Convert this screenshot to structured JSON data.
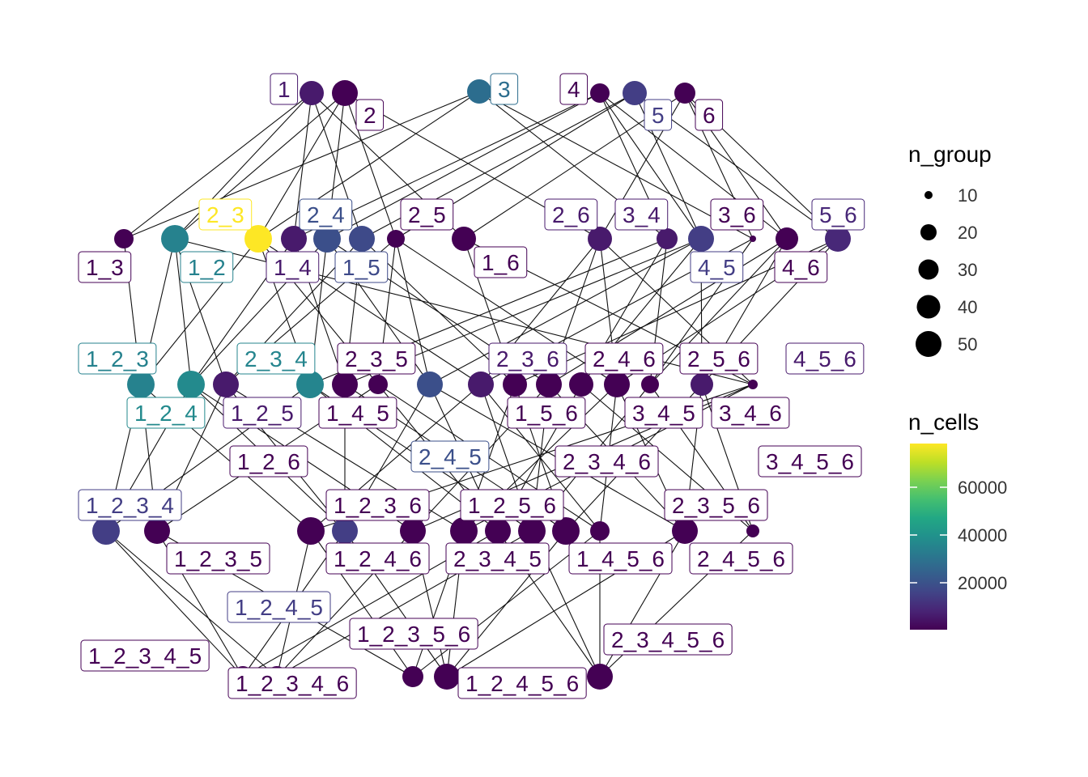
{
  "legend": {
    "size_title": "n_group",
    "size_entries": [
      {
        "label": "10",
        "value": 10
      },
      {
        "label": "20",
        "value": 20
      },
      {
        "label": "30",
        "value": 30
      },
      {
        "label": "40",
        "value": 40
      },
      {
        "label": "50",
        "value": 50
      }
    ],
    "color_title": "n_cells",
    "color_ticks": [
      {
        "label": "60000",
        "value": 60000
      },
      {
        "label": "40000",
        "value": 40000
      },
      {
        "label": "20000",
        "value": 20000
      }
    ],
    "color_scale": "viridis"
  },
  "nodes": [
    {
      "id": "1",
      "label": "1",
      "color": "#481a6c"
    },
    {
      "id": "2",
      "label": "2",
      "color": "#440154"
    },
    {
      "id": "3",
      "label": "3",
      "color": "#2c6d8e"
    },
    {
      "id": "4",
      "label": "4",
      "color": "#440154"
    },
    {
      "id": "5",
      "label": "5",
      "color": "#433e85"
    },
    {
      "id": "6",
      "label": "6",
      "color": "#440154"
    },
    {
      "id": "1_3",
      "label": "1_3",
      "color": "#440154"
    },
    {
      "id": "1_2",
      "label": "1_2",
      "color": "#26828e"
    },
    {
      "id": "2_3",
      "label": "2_3",
      "color": "#fde725"
    },
    {
      "id": "1_4",
      "label": "1_4",
      "color": "#481a6c"
    },
    {
      "id": "2_4",
      "label": "2_4",
      "color": "#3b4f8a"
    },
    {
      "id": "1_5",
      "label": "1_5",
      "color": "#3e4a89"
    },
    {
      "id": "2_5",
      "label": "2_5",
      "color": "#440154"
    },
    {
      "id": "1_6",
      "label": "1_6",
      "color": "#440154"
    },
    {
      "id": "2_6",
      "label": "2_6",
      "color": "#481a6c"
    },
    {
      "id": "3_4",
      "label": "3_4",
      "color": "#481a6c"
    },
    {
      "id": "4_5",
      "label": "4_5",
      "color": "#433e85"
    },
    {
      "id": "3_6",
      "label": "3_6",
      "color": "#440154"
    },
    {
      "id": "4_6",
      "label": "4_6",
      "color": "#440154"
    },
    {
      "id": "5_6",
      "label": "5_6",
      "color": "#482878"
    },
    {
      "id": "1_2_3",
      "label": "1_2_3",
      "color": "#26828e"
    },
    {
      "id": "1_2_4",
      "label": "1_2_4",
      "color": "#238a8d"
    },
    {
      "id": "1_2_5",
      "label": "1_2_5",
      "color": "#481a6c"
    },
    {
      "id": "2_3_4",
      "label": "2_3_4",
      "color": "#25858e"
    },
    {
      "id": "1_4_5",
      "label": "1_4_5",
      "color": "#440154"
    },
    {
      "id": "2_3_5",
      "label": "2_3_5",
      "color": "#440154"
    },
    {
      "id": "2_4_5",
      "label": "2_4_5",
      "color": "#3b4f8a"
    },
    {
      "id": "2_3_6",
      "label": "2_3_6",
      "color": "#481a6c"
    },
    {
      "id": "1_5_6",
      "label": "1_5_6",
      "color": "#440154"
    },
    {
      "id": "2_4_6",
      "label": "2_4_6",
      "color": "#440154"
    },
    {
      "id": "3_4_5",
      "label": "3_4_5",
      "color": "#440154"
    },
    {
      "id": "2_5_6",
      "label": "2_5_6",
      "color": "#440154"
    },
    {
      "id": "3_4_6",
      "label": "3_4_6",
      "color": "#440154"
    },
    {
      "id": "4_5_6",
      "label": "4_5_6",
      "color": "#481a6c"
    },
    {
      "id": "1_2_6",
      "label": "1_2_6",
      "color": "#440154"
    },
    {
      "id": "1_2_3_4",
      "label": "1_2_3_4",
      "color": "#433e85"
    },
    {
      "id": "1_2_3_5",
      "label": "1_2_3_5",
      "color": "#440154"
    },
    {
      "id": "1_2_3_6",
      "label": "1_2_3_6",
      "color": "#440154"
    },
    {
      "id": "1_2_4_5",
      "label": "1_2_4_5",
      "color": "#433e85"
    },
    {
      "id": "1_2_4_6",
      "label": "1_2_4_6",
      "color": "#440154"
    },
    {
      "id": "1_2_5_6",
      "label": "1_2_5_6",
      "color": "#440154"
    },
    {
      "id": "2_3_4_5",
      "label": "2_3_4_5",
      "color": "#440154"
    },
    {
      "id": "2_3_4_6",
      "label": "2_3_4_6",
      "color": "#440154"
    },
    {
      "id": "1_4_5_6",
      "label": "1_4_5_6",
      "color": "#440154"
    },
    {
      "id": "2_3_5_6",
      "label": "2_3_5_6",
      "color": "#440154"
    },
    {
      "id": "2_4_5_6",
      "label": "2_4_5_6",
      "color": "#440154"
    },
    {
      "id": "3_4_5_6",
      "label": "3_4_5_6",
      "color": "#440154"
    },
    {
      "id": "1_2_3_4_5",
      "label": "1_2_3_4_5",
      "color": "#440154"
    },
    {
      "id": "1_2_3_4_6",
      "label": "1_2_3_4_6",
      "color": "#440154"
    },
    {
      "id": "1_2_3_5_6",
      "label": "1_2_3_5_6",
      "color": "#440154"
    },
    {
      "id": "1_2_4_5_6",
      "label": "1_2_4_5_6",
      "color": "#440154"
    },
    {
      "id": "2_3_4_5_6",
      "label": "2_3_4_5_6",
      "color": "#440154"
    }
  ]
}
